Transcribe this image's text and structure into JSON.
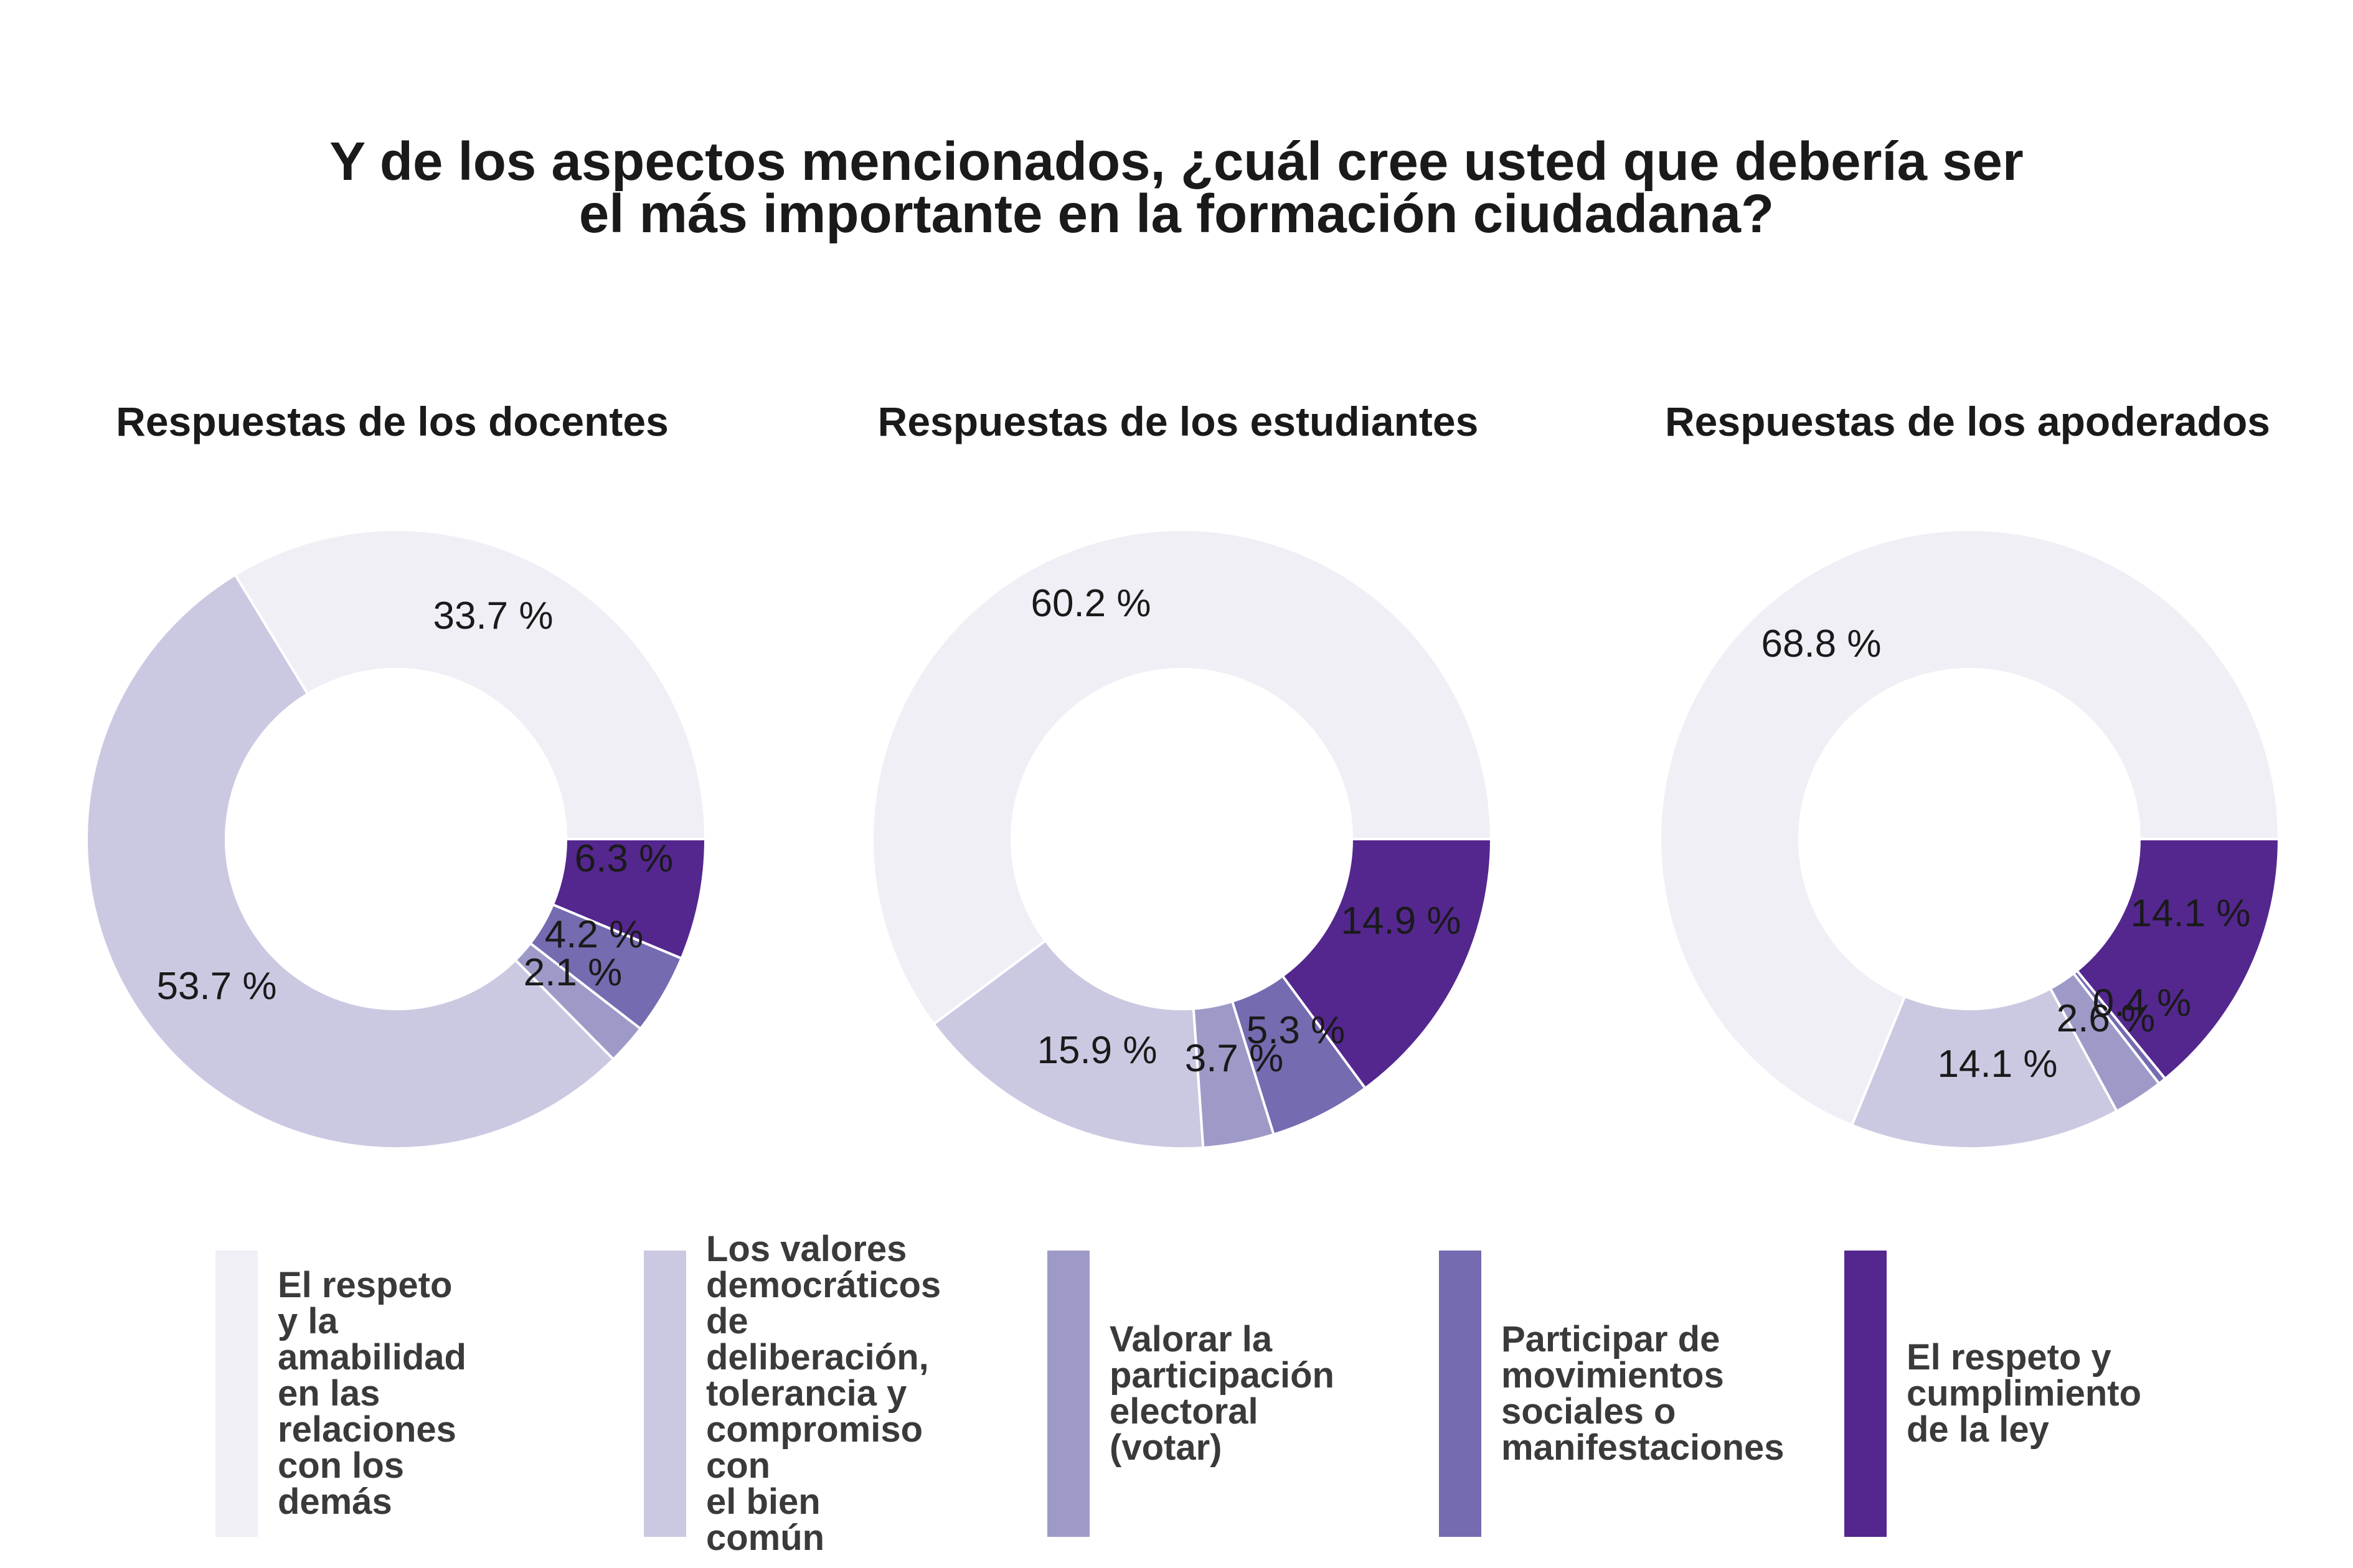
{
  "title": "Y de los aspectos mencionados, ¿cuál cree usted que debería ser\nel más importante en la formación ciudadana?",
  "categories": [
    "El respeto y la\namabilidad en las\nrelaciones con los\ndemás",
    "Los valores\ndemocráticos de\ndeliberación,\ntolerancia y\ncompromiso con\nel bien común",
    "Valorar la\nparticipación\nelectoral (votar)",
    "Participar de\nmovimientos\nsociales o\nmanifestaciones",
    "El respeto y\ncumplimiento\nde la ley"
  ],
  "colors": [
    "#f0eff6",
    "#cbc9e2",
    "#9e9ac8",
    "#756bb1",
    "#54278f"
  ],
  "chart_data": [
    {
      "type": "pie",
      "title": "Respuestas de los docentes",
      "categories": [
        "El respeto y la amabilidad en las relaciones con los demás",
        "Los valores democráticos de deliberación, tolerancia y compromiso con el bien común",
        "Valorar la participación electoral (votar)",
        "Participar de movimientos sociales o manifestaciones",
        "El respeto y cumplimiento de la ley"
      ],
      "values": [
        33.7,
        53.7,
        2.1,
        4.2,
        6.3
      ],
      "labels": [
        "33.7 %",
        "53.7 %",
        "2.1 %",
        "4.2 %",
        "6.3 %"
      ],
      "donut": true,
      "legend": "bottom"
    },
    {
      "type": "pie",
      "title": "Respuestas de los estudiantes",
      "categories": [
        "El respeto y la amabilidad en las relaciones con los demás",
        "Los valores democráticos de deliberación, tolerancia y compromiso con el bien común",
        "Valorar la participación electoral (votar)",
        "Participar de movimientos sociales o manifestaciones",
        "El respeto y cumplimiento de la ley"
      ],
      "values": [
        60.2,
        15.9,
        3.7,
        5.3,
        14.9
      ],
      "labels": [
        "60.2 %",
        "15.9 %",
        "3.7 %",
        "5.3 %",
        "14.9 %"
      ],
      "donut": true,
      "legend": "bottom"
    },
    {
      "type": "pie",
      "title": "Respuestas de los apoderados",
      "categories": [
        "El respeto y la amabilidad en las relaciones con los demás",
        "Los valores democráticos de deliberación, tolerancia y compromiso con el bien común",
        "Valorar la participación electoral (votar)",
        "Participar de movimientos sociales o manifestaciones",
        "El respeto y cumplimiento de la ley"
      ],
      "values": [
        68.8,
        14.1,
        2.6,
        0.4,
        14.1
      ],
      "labels": [
        "68.8 %",
        "14.1 %",
        "2.6 %",
        "0.4 %",
        "14.1 %"
      ],
      "donut": true,
      "legend": "bottom"
    }
  ]
}
